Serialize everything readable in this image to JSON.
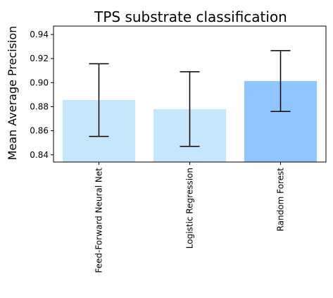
{
  "chart_data": {
    "type": "bar",
    "title": "TPS substrate classification",
    "xlabel": "",
    "ylabel": "Mean Average Precision",
    "categories": [
      "Feed-Forward Neural Net",
      "Logistic Regression",
      "Random Forest"
    ],
    "values": [
      0.8855,
      0.878,
      0.9013
    ],
    "errors": [
      0.0302,
      0.031,
      0.0253
    ],
    "ylim": [
      0.834,
      0.947
    ],
    "yticks": [
      0.84,
      0.86,
      0.88,
      0.9,
      0.92,
      0.94
    ],
    "ytick_labels": [
      "0.84",
      "0.86",
      "0.88",
      "0.90",
      "0.92",
      "0.94"
    ],
    "bar_colors": [
      "#c5e6fb",
      "#c5e6fb",
      "#8fc6fd"
    ],
    "error_color": "#000000",
    "grid": false,
    "legend": false
  }
}
